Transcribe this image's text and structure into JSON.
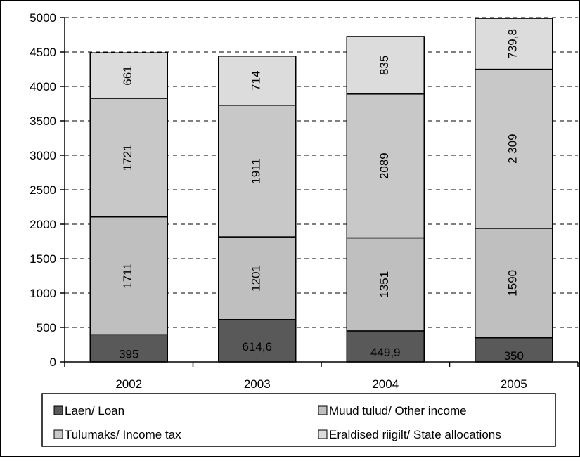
{
  "chart_data": {
    "type": "bar",
    "stacked": true,
    "categories": [
      "2002",
      "2003",
      "2004",
      "2005"
    ],
    "series": [
      {
        "name": "Laen/ Loan",
        "color": "#595959",
        "values": [
          395,
          614.6,
          449.9,
          350
        ],
        "labels": [
          "395",
          "614,6",
          "449,9",
          "350"
        ]
      },
      {
        "name": "Muud tulud/ Other income",
        "color": "#bfbfbf",
        "values": [
          1711,
          1201,
          1351,
          1590
        ],
        "labels": [
          "1711",
          "1201",
          "1351",
          "1590"
        ]
      },
      {
        "name": "Tulumaks/ Income tax",
        "color": "#c8c8c8",
        "values": [
          1721,
          1911,
          2089,
          2309
        ],
        "labels": [
          "1721",
          "1911",
          "2089",
          "2 309"
        ]
      },
      {
        "name": "Eraldised riigilt/ State allocations",
        "color": "#dcdcdc",
        "values": [
          661,
          714,
          835,
          739.8
        ],
        "labels": [
          "661",
          "714",
          "835",
          "739,8"
        ]
      }
    ],
    "ylim": [
      0,
      5000
    ],
    "yticks": [
      0,
      500,
      1000,
      1500,
      2000,
      2500,
      3000,
      3500,
      4000,
      4500,
      5000
    ],
    "grid": true,
    "legend_position": "bottom",
    "title": "",
    "xlabel": "",
    "ylabel": ""
  }
}
